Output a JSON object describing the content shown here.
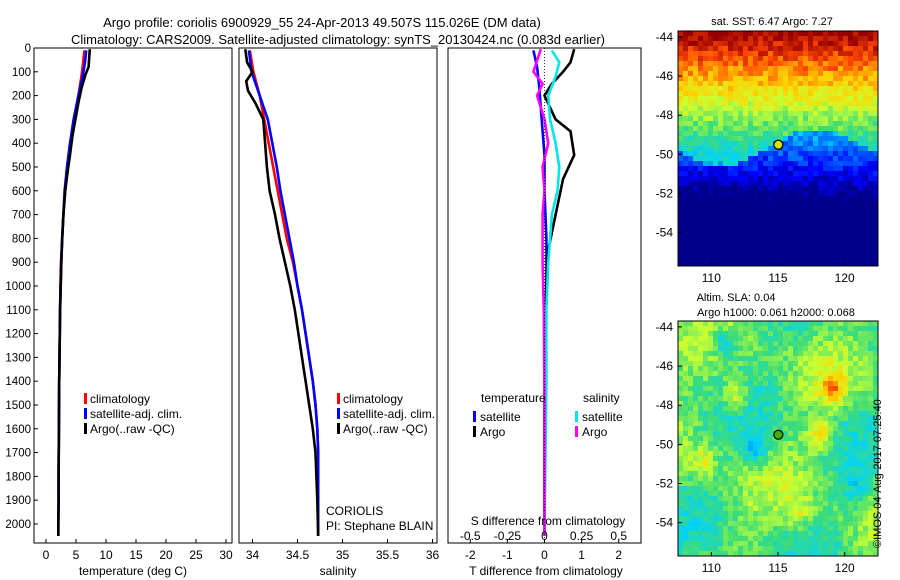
{
  "titles": {
    "line1": "Argo profile: coriolis 6900929_55 24-Apr-2013 49.507S 115.026E (DM data)",
    "line2": "Climatology: CARS2009. Satellite-adjusted climatology: synTS_20130424.nc (0.083d earlier)"
  },
  "colors": {
    "climatology": "#ff0000",
    "satellite": "#0000ff",
    "argo": "#000000",
    "sat_s": "#00e5e5",
    "argo_s": "#ff00ff"
  },
  "chart_data": [
    {
      "id": "temperature",
      "type": "line",
      "xlabel": "temperature (deg C)",
      "ylabel": "",
      "xlim": [
        -2,
        31
      ],
      "ylim": [
        2080,
        0
      ],
      "xticks": [
        "0",
        "5",
        "10",
        "15",
        "20",
        "25",
        "30"
      ],
      "yticks": [
        "0",
        "100",
        "200",
        "300",
        "400",
        "500",
        "600",
        "700",
        "800",
        "900",
        "1000",
        "1100",
        "1200",
        "1300",
        "1400",
        "1500",
        "1600",
        "1700",
        "1800",
        "1900",
        "2000"
      ],
      "legend": [
        "climatology",
        "satellite-adj. clim.",
        "Argo(..raw -QC)"
      ],
      "series": [
        {
          "name": "climatology",
          "color": "#ff0000",
          "x": [
            6.4,
            6.2,
            5.9,
            5.4,
            4.8,
            4.2,
            3.6,
            3.2,
            2.9,
            2.7,
            2.5,
            2.4,
            2.35,
            2.3,
            2.2,
            2.15,
            2.1,
            2.1,
            2.05,
            2.05
          ],
          "y": [
            10,
            60,
            120,
            200,
            300,
            400,
            500,
            600,
            700,
            800,
            900,
            1000,
            1100,
            1200,
            1400,
            1600,
            1800,
            1900,
            2000,
            2050
          ]
        },
        {
          "name": "satellite-adj. clim.",
          "color": "#0000ff",
          "x": [
            6.7,
            6.5,
            6.1,
            5.4,
            4.6,
            4.0,
            3.5,
            3.1,
            2.9,
            2.7,
            2.55,
            2.45,
            2.35,
            2.3,
            2.2,
            2.15,
            2.1,
            2.1,
            2.05,
            2.05
          ],
          "y": [
            10,
            60,
            120,
            200,
            300,
            400,
            500,
            600,
            700,
            800,
            900,
            1000,
            1100,
            1200,
            1400,
            1600,
            1800,
            1900,
            2000,
            2050
          ]
        },
        {
          "name": "Argo(..raw -QC)",
          "color": "#000000",
          "x": [
            7.3,
            7.2,
            7.1,
            6.6,
            5.9,
            5.4,
            4.9,
            4.4,
            4.0,
            3.6,
            3.2,
            2.9,
            2.7,
            2.55,
            2.45,
            2.35,
            2.3,
            2.2,
            2.15,
            2.1,
            2.1,
            2.05,
            2.05
          ],
          "y": [
            5,
            40,
            80,
            110,
            170,
            230,
            300,
            370,
            450,
            520,
            600,
            700,
            800,
            900,
            1000,
            1100,
            1200,
            1400,
            1600,
            1800,
            1900,
            2000,
            2050
          ]
        }
      ]
    },
    {
      "id": "salinity",
      "type": "line",
      "xlabel": "salinity",
      "ylabel": "",
      "xlim": [
        33.85,
        36.05
      ],
      "ylim": [
        2080,
        0
      ],
      "xticks": [
        "34",
        "34.5",
        "35",
        "35.5",
        "36"
      ],
      "legend": [
        "climatology",
        "satellite-adj. clim.",
        "Argo(..raw -QC)"
      ],
      "annotation": [
        "CORIOLIS",
        "PI: Stephane BLAIN"
      ],
      "series": [
        {
          "name": "climatology",
          "color": "#ff0000",
          "x": [
            33.97,
            34.01,
            34.08,
            34.13,
            34.18,
            34.23,
            34.28,
            34.33,
            34.38,
            34.45,
            34.5,
            34.55,
            34.59,
            34.63,
            34.67,
            34.7,
            34.72,
            34.73,
            34.73,
            34.73
          ],
          "y": [
            10,
            100,
            200,
            300,
            400,
            500,
            600,
            700,
            800,
            900,
            1000,
            1100,
            1200,
            1300,
            1400,
            1500,
            1600,
            1700,
            1900,
            2050
          ]
        },
        {
          "name": "satellite-adj. clim.",
          "color": "#0000ff",
          "x": [
            33.96,
            33.99,
            34.08,
            34.17,
            34.22,
            34.27,
            34.31,
            34.36,
            34.41,
            34.46,
            34.5,
            34.55,
            34.59,
            34.63,
            34.67,
            34.7,
            34.72,
            34.73,
            34.73,
            34.73
          ],
          "y": [
            10,
            100,
            200,
            300,
            400,
            500,
            600,
            700,
            800,
            900,
            1000,
            1100,
            1200,
            1300,
            1400,
            1500,
            1600,
            1700,
            1900,
            2050
          ]
        },
        {
          "name": "Argo(..raw -QC)",
          "color": "#000000",
          "x": [
            33.92,
            33.94,
            34.0,
            33.93,
            33.95,
            34.03,
            34.12,
            34.14,
            34.16,
            34.19,
            34.25,
            34.3,
            34.36,
            34.42,
            34.47,
            34.51,
            34.55,
            34.59,
            34.63,
            34.67,
            34.7,
            34.72,
            34.73
          ],
          "y": [
            5,
            60,
            100,
            140,
            180,
            230,
            300,
            400,
            500,
            600,
            700,
            800,
            900,
            1000,
            1100,
            1200,
            1300,
            1400,
            1500,
            1600,
            1700,
            1900,
            2050
          ]
        }
      ]
    },
    {
      "id": "difference",
      "type": "line",
      "xlabel": "T difference from climatology",
      "xlabel_top": "S difference from climatology",
      "xlim": [
        -2.6,
        2.6
      ],
      "ylim": [
        2080,
        0
      ],
      "xticks": [
        "-2",
        "-1",
        "0",
        "1",
        "2"
      ],
      "xticks_top": [
        "-0.5",
        "-0.25",
        "0",
        "0.25",
        "0.5"
      ],
      "legend_headers": [
        "temperature",
        "salinity"
      ],
      "legend": [
        "satellite",
        "Argo",
        "satellite",
        "Argo"
      ],
      "series": [
        {
          "name": "satellite",
          "quantity": "temperature",
          "color": "#0000ff",
          "x": [
            -0.3,
            -0.2,
            -0.15,
            -0.1,
            -0.05,
            0.0,
            0.0,
            0.05,
            0.05,
            0.02,
            0.0,
            0.0,
            0.0
          ],
          "y": [
            10,
            80,
            150,
            250,
            350,
            450,
            600,
            800,
            1000,
            1200,
            1500,
            1800,
            2050
          ]
        },
        {
          "name": "Argo",
          "quantity": "temperature",
          "color": "#000000",
          "x": [
            0.8,
            0.7,
            0.5,
            0.2,
            0.0,
            0.3,
            0.7,
            0.8,
            0.5,
            0.3,
            0.1,
            0.05,
            0.02,
            0.0,
            0.0,
            0.0
          ],
          "y": [
            5,
            60,
            100,
            150,
            200,
            300,
            350,
            450,
            550,
            700,
            850,
            1000,
            1200,
            1500,
            1800,
            2050
          ]
        },
        {
          "name": "satellite",
          "quantity": "salinity",
          "color": "#00e5e5",
          "x": [
            0.2,
            0.4,
            0.3,
            0.1,
            0.15,
            0.3,
            0.4,
            0.35,
            0.2,
            0.15,
            0.1,
            0.05,
            0.05,
            0.02,
            0.0
          ],
          "y": [
            10,
            60,
            120,
            200,
            300,
            400,
            500,
            600,
            700,
            800,
            900,
            1100,
            1400,
            1800,
            2050
          ]
        },
        {
          "name": "Argo",
          "quantity": "salinity",
          "color": "#ff00ff",
          "x": [
            -0.1,
            -0.3,
            -0.05,
            -0.2,
            0.0,
            0.1,
            -0.05,
            0.0,
            -0.05,
            -0.05,
            -0.05,
            -0.02,
            0.0,
            0.0
          ],
          "y": [
            5,
            100,
            150,
            200,
            300,
            400,
            500,
            600,
            700,
            800,
            900,
            1100,
            1500,
            2050
          ]
        }
      ]
    },
    {
      "id": "sst_map",
      "type": "heatmap",
      "title": "sat. SST: 6.47  Argo: 7.27",
      "xlim": [
        107.5,
        122.5
      ],
      "ylim": [
        -55.7,
        -43.7
      ],
      "xticks": [
        "110",
        "115",
        "120"
      ],
      "yticks": [
        "-44",
        "-46",
        "-48",
        "-50",
        "-52",
        "-54"
      ],
      "marker": {
        "x": 115.026,
        "y": -49.507
      }
    },
    {
      "id": "sla_map",
      "type": "heatmap",
      "title_line1": "Altim. SLA: 0.04",
      "title_line2": "Argo h1000: 0.061 h2000: 0.068",
      "xlim": [
        107.5,
        122.5
      ],
      "ylim": [
        -55.7,
        -43.7
      ],
      "xticks": [
        "110",
        "115",
        "120"
      ],
      "yticks": [
        "-44",
        "-46",
        "-48",
        "-50",
        "-52",
        "-54"
      ],
      "marker": {
        "x": 115.026,
        "y": -49.507
      }
    }
  ],
  "stamp": "©IMOS 04-Aug-2017 07:25:40"
}
